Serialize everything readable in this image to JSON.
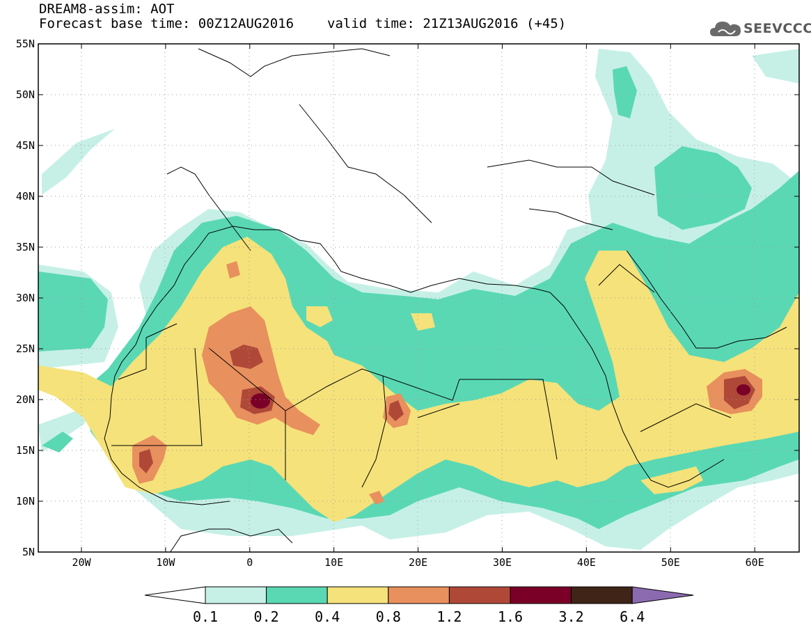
{
  "title": {
    "line1": "DREAM8-assim: AOT",
    "base_time_label": "Forecast base time: 00Z12AUG2016",
    "valid_time_label": "valid time: 21Z13AUG2016 (+45)"
  },
  "logo": {
    "text": "SEEVCCC",
    "icon": "cloud-icon"
  },
  "map": {
    "lon_ticks": [
      "20W",
      "10W",
      "0",
      "10E",
      "20E",
      "30E",
      "40E",
      "50E",
      "60E"
    ],
    "lat_ticks": [
      "55N",
      "50N",
      "45N",
      "40N",
      "35N",
      "30N",
      "25N",
      "20N",
      "15N",
      "10N",
      "5N"
    ]
  },
  "colorbar": {
    "labels": [
      "0.1",
      "0.2",
      "0.4",
      "0.8",
      "1.2",
      "1.6",
      "3.2",
      "6.4"
    ],
    "colors": [
      "#ffffff",
      "#c6f0e6",
      "#5ad8b4",
      "#f5e27a",
      "#e8905e",
      "#b04838",
      "#7a0028",
      "#402418",
      "#8c6ab0"
    ]
  },
  "palette": {
    "c01": "#c6f0e6",
    "c02": "#5ad8b4",
    "c04": "#f5e27a",
    "c08": "#e8905e",
    "c12": "#b04838",
    "c16": "#7a0028",
    "c32": "#402418",
    "c64": "#8c6ab0"
  }
}
